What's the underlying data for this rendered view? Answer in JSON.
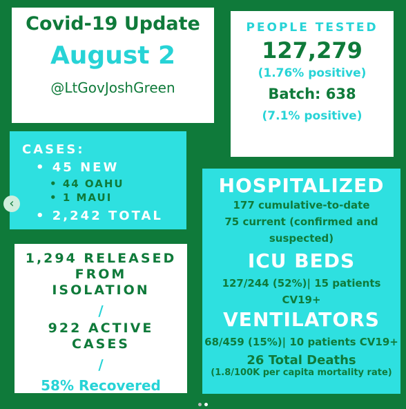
{
  "title_card": {
    "title": "Covid-19 Update",
    "date": "August 2",
    "handle": "@LtGovJoshGreen"
  },
  "tested_card": {
    "label": "PEOPLE TESTED",
    "count": "127,279",
    "positive_pct": "(1.76% positive)",
    "batch": "Batch: 638",
    "batch_pct": "(7.1% positive)"
  },
  "cases_card": {
    "heading": "CASES:",
    "new": "45 NEW",
    "oahu": "44 OAHU",
    "maui": "1 MAUI",
    "total": "2,242 TOTAL"
  },
  "released_card": {
    "line1": "1,294 RELEASED",
    "line2": "FROM",
    "line3": "ISOLATION",
    "slash": "/",
    "active1": "922 ACTIVE",
    "active2": "CASES",
    "recovered": "58% Recovered"
  },
  "hosp_card": {
    "hosp_heading": "HOSPITALIZED",
    "cumulative": "177 cumulative-to-date",
    "current1": "75 current (confirmed and",
    "current2": "suspected)",
    "icu_heading": "ICU BEDS",
    "icu_line": "127/244 (52%)| 15 patients CV19+",
    "vent_heading": "VENTILATORS",
    "vent_line": "68/459 (15%)| 10 patients CV19+",
    "deaths": "26 Total Deaths",
    "mortality": "(1.8/100K per capita mortality rate)"
  },
  "nav": {
    "prev_icon": "chevron-left-icon",
    "prev_glyph": "‹"
  },
  "colors": {
    "background": "#0f7a3a",
    "cyan": "#2ee0e0",
    "teal_text": "#27d3d6",
    "white": "#ffffff"
  }
}
